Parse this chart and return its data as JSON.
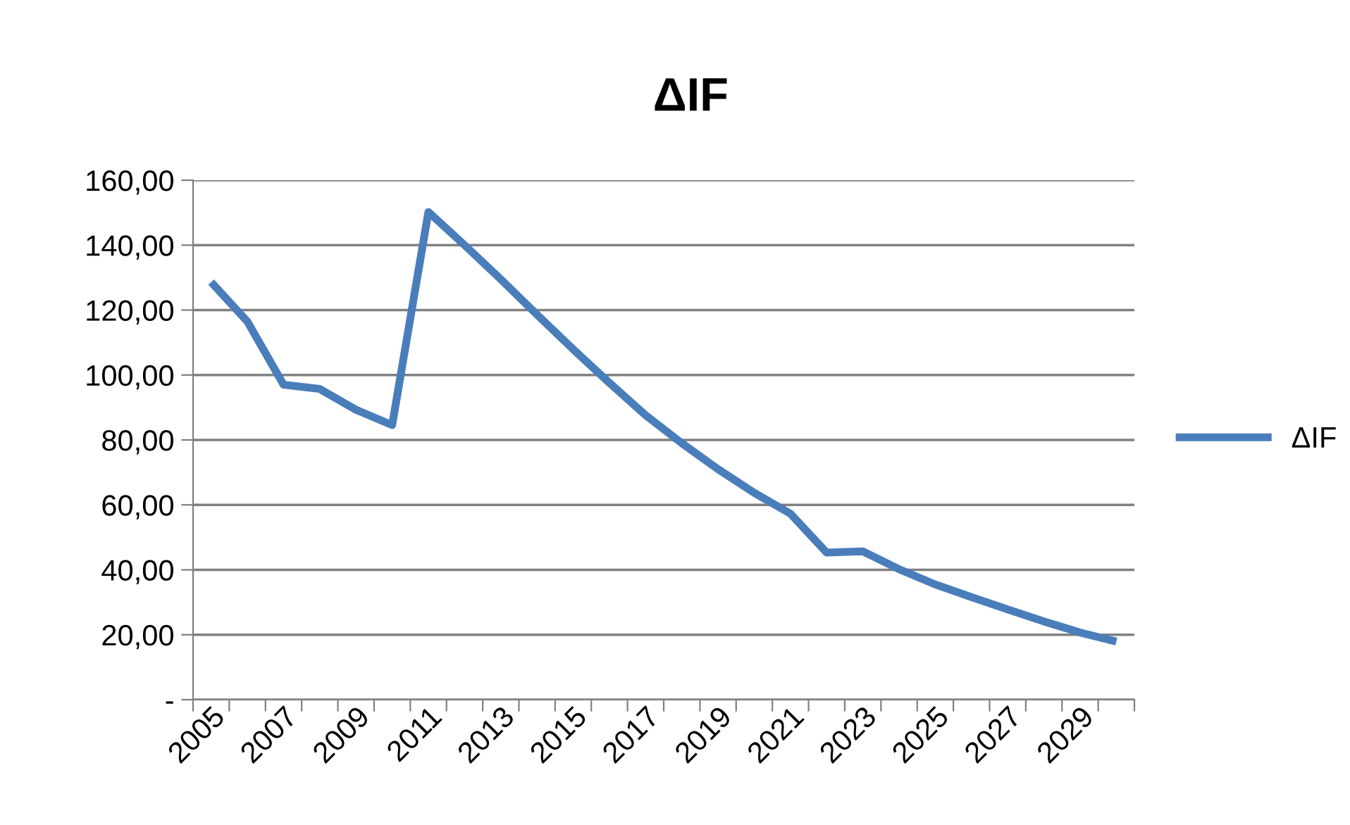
{
  "chart_data": {
    "type": "line",
    "title": "ΔIF",
    "categories": [
      "2005",
      null,
      "2007",
      null,
      "2009",
      null,
      "2011",
      null,
      "2013",
      null,
      "2015",
      null,
      "2017",
      null,
      "2019",
      null,
      "2021",
      null,
      "2023",
      null,
      "2025",
      null,
      "2027",
      null,
      "2029",
      null
    ],
    "series": [
      {
        "name": "ΔIF",
        "color": "#4a7ebb",
        "values": [
          128.6,
          116.5,
          97,
          95.7,
          89.3,
          84.6,
          150.2,
          140,
          129.5,
          118.6,
          107.9,
          97.6,
          87.6,
          79,
          71,
          63.7,
          57.3,
          45.3,
          45.7,
          40.2,
          35.5,
          31.6,
          27.8,
          24.1,
          20.7,
          17.9
        ]
      }
    ],
    "ylim": [
      0,
      160
    ],
    "yticks": [
      {
        "value": 0,
        "label": "-"
      },
      {
        "value": 20,
        "label": "20,00"
      },
      {
        "value": 40,
        "label": "40,00"
      },
      {
        "value": 60,
        "label": "60,00"
      },
      {
        "value": 80,
        "label": "80,00"
      },
      {
        "value": 100,
        "label": "100,00"
      },
      {
        "value": 120,
        "label": "120,00"
      },
      {
        "value": 140,
        "label": "140,00"
      },
      {
        "value": 160,
        "label": "160,00"
      }
    ],
    "grid": "y",
    "legend": "right",
    "marker": "none",
    "line_style": "solid"
  }
}
